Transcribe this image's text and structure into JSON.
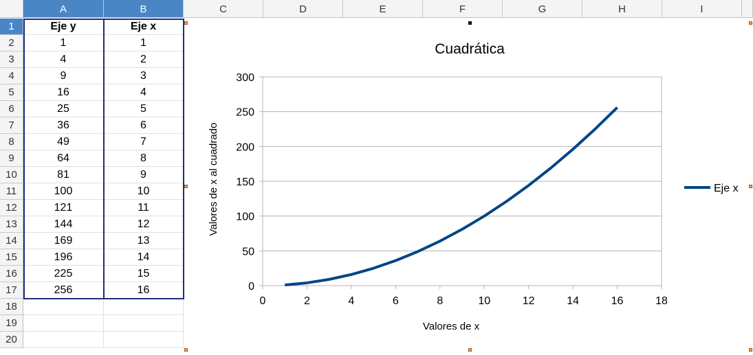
{
  "columns": [
    "A",
    "B",
    "C",
    "D",
    "E",
    "F",
    "G",
    "H",
    "I"
  ],
  "rows": [
    "1",
    "2",
    "3",
    "4",
    "5",
    "6",
    "7",
    "8",
    "9",
    "10",
    "11",
    "12",
    "13",
    "14",
    "15",
    "16",
    "17",
    "18",
    "19",
    "20"
  ],
  "table": {
    "headers": [
      "Eje y",
      "Eje x"
    ],
    "rows": [
      [
        "1",
        "1"
      ],
      [
        "4",
        "2"
      ],
      [
        "9",
        "3"
      ],
      [
        "16",
        "4"
      ],
      [
        "25",
        "5"
      ],
      [
        "36",
        "6"
      ],
      [
        "49",
        "7"
      ],
      [
        "64",
        "8"
      ],
      [
        "81",
        "9"
      ],
      [
        "100",
        "10"
      ],
      [
        "121",
        "11"
      ],
      [
        "144",
        "12"
      ],
      [
        "169",
        "13"
      ],
      [
        "196",
        "14"
      ],
      [
        "225",
        "15"
      ],
      [
        "256",
        "16"
      ]
    ]
  },
  "chart_data": {
    "type": "line",
    "title": "Cuadrática",
    "xlabel": "Valores de x",
    "ylabel": "Valores de x al cuadrado",
    "xlim": [
      0,
      18
    ],
    "ylim": [
      0,
      300
    ],
    "xticks": [
      "0",
      "2",
      "4",
      "6",
      "8",
      "10",
      "12",
      "14",
      "16",
      "18"
    ],
    "yticks": [
      "0",
      "50",
      "100",
      "150",
      "200",
      "250",
      "300"
    ],
    "grid": true,
    "legend": "right",
    "series": [
      {
        "name": "Eje x",
        "color": "#004586",
        "x": [
          1,
          2,
          3,
          4,
          5,
          6,
          7,
          8,
          9,
          10,
          11,
          12,
          13,
          14,
          15,
          16
        ],
        "y": [
          1,
          4,
          9,
          16,
          25,
          36,
          49,
          64,
          81,
          100,
          121,
          144,
          169,
          196,
          225,
          256
        ]
      }
    ]
  }
}
